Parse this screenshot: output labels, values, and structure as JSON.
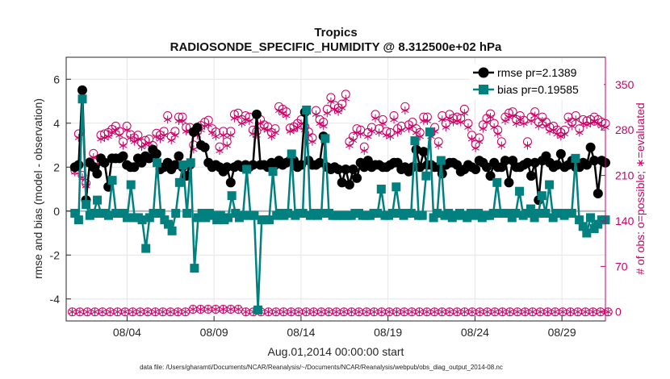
{
  "chart_data": {
    "type": "line",
    "title": "Tropics",
    "subtitle": "RADIOSONDE_SPECIFIC_HUMIDITY @ 8.312500e+02 hPa",
    "xlabel": "Aug.01,2014 00:00:00 start",
    "ylabel_left": "rmse and bias (model - observation)",
    "ylabel_right": "# of obs: o=possible; ∗=evaluated",
    "footnote": "data file: /Users/gharamti/Documents/NCAR/Reanalysis/~/Documents/NCAR/Reanalysis/webpub/obs_diag_output_2014-08.nc",
    "x_range_days": [
      0.5,
      31.5
    ],
    "ylim_left": [
      -5,
      7
    ],
    "ylim_right": [
      -14,
      392
    ],
    "yticks_left": [
      -4,
      -2,
      0,
      2,
      4,
      6
    ],
    "yticks_right": [
      0,
      70,
      140,
      210,
      280,
      350
    ],
    "xticks": [
      {
        "day": 4,
        "label": "08/04"
      },
      {
        "day": 9,
        "label": "08/09"
      },
      {
        "day": 14,
        "label": "08/14"
      },
      {
        "day": 19,
        "label": "08/19"
      },
      {
        "day": 24,
        "label": "08/24"
      },
      {
        "day": 29,
        "label": "08/29"
      }
    ],
    "legend_position": "top-right",
    "series": [
      {
        "name": "rmse",
        "legend": "rmse pr=2.1389",
        "color": "#000000",
        "marker": "circle",
        "values": [
          2.0,
          2.1,
          5.5,
          0.5,
          2.2,
          2.0,
          1.7,
          2.4,
          2.2,
          1.1,
          2.4,
          2.4,
          2.4,
          2.5,
          2.1,
          2.0,
          2.0,
          2.4,
          2.2,
          2.5,
          2.4,
          2.8,
          2.6,
          1.9,
          2.0,
          2.2,
          1.9,
          2.1,
          2.5,
          2.0,
          1.6,
          2.1,
          3.6,
          3.8,
          3.0,
          2.9,
          2.2,
          2.0,
          2.1,
          2.0,
          1.8,
          2.0,
          1.3,
          2.0,
          2.1,
          2.0,
          2.1,
          2.0,
          2.1,
          4.4,
          2.1,
          2.1,
          2.0,
          2.2,
          2.1,
          2.3,
          2.1,
          2.2,
          2.3,
          2.3,
          2.0,
          2.1,
          4.5,
          2.3,
          2.1,
          2.1,
          2.2,
          3.4,
          2.0,
          1.9,
          2.0,
          1.9,
          1.3,
          1.9,
          1.2,
          1.9,
          1.5,
          2.2,
          2.0,
          2.3,
          2.0,
          2.1,
          2.1,
          2.0,
          2.0,
          2.1,
          2.2,
          2.2,
          1.9,
          2.0,
          1.8,
          2.0,
          2.8,
          2.0,
          2.7,
          2.1,
          2.1,
          2.0,
          2.0,
          1.7,
          2.1,
          2.2,
          2.2,
          2.1,
          1.8,
          1.9,
          2.1,
          2.0,
          1.9,
          2.3,
          2.2,
          2.0,
          1.6,
          2.2,
          2.0,
          2.0,
          2.3,
          1.3,
          2.3,
          2.0,
          2.0,
          2.1,
          2.2,
          1.6,
          2.2,
          0.5,
          2.3,
          2.5,
          2.2,
          2.0,
          2.1,
          2.6,
          2.0,
          2.1,
          2.3,
          2.0,
          2.0,
          2.2,
          2.1,
          2.9,
          2.3,
          0.8,
          2.3,
          2.2
        ]
      },
      {
        "name": "bias",
        "legend": "bias pr=0.19585",
        "color": "#00807f",
        "marker": "square",
        "values": [
          -0.1,
          -0.4,
          5.1,
          0.3,
          -0.2,
          -0.1,
          0.5,
          -0.1,
          -0.1,
          -0.2,
          1.4,
          -0.1,
          -0.1,
          -0.1,
          -0.3,
          1.2,
          -0.3,
          -0.3,
          -0.4,
          -1.7,
          -0.3,
          -0.1,
          2.2,
          -0.1,
          -0.4,
          -0.6,
          -0.9,
          -0.1,
          1.3,
          2.1,
          -0.1,
          2.2,
          -2.6,
          -0.3,
          -0.1,
          -0.3,
          -0.1,
          -0.2,
          -0.4,
          -0.2,
          -0.4,
          -0.3,
          0.7,
          -0.1,
          -0.3,
          -0.2,
          1.9,
          -0.2,
          -0.2,
          -4.5,
          -0.4,
          -0.4,
          -0.4,
          1.8,
          -0.2,
          -0.1,
          -0.2,
          -0.1,
          2.6,
          -0.2,
          -0.1,
          -0.1,
          4.6,
          -0.2,
          -0.1,
          -0.2,
          -0.1,
          3.3,
          -0.1,
          -0.2,
          -0.2,
          -0.2,
          -0.2,
          -0.2,
          -0.2,
          -0.1,
          -0.1,
          -0.2,
          -0.2,
          -0.2,
          -0.1,
          -0.1,
          1.0,
          -0.2,
          -0.2,
          -0.1,
          1.1,
          -0.1,
          -0.2,
          -0.1,
          -0.1,
          3.2,
          -0.2,
          -0.2,
          1.6,
          3.6,
          -0.3,
          -0.1,
          2.3,
          -0.2,
          -0.1,
          -0.3,
          -0.2,
          -0.1,
          -0.2,
          -0.3,
          -0.1,
          -0.2,
          -0.1,
          -0.3,
          -0.2,
          -0.2,
          -0.1,
          1.3,
          -0.1,
          -0.1,
          -0.1,
          -0.3,
          -0.1,
          0.9,
          -0.2,
          -0.1,
          0.1,
          -0.3,
          -0.1,
          0.7,
          -0.1,
          1.2,
          -0.3,
          -0.1,
          -0.1,
          -0.2,
          -0.1,
          -0.1,
          2.4,
          -0.4,
          -0.7,
          -1.0,
          -0.3,
          -0.8,
          -0.6,
          -0.4,
          -0.4
        ]
      }
    ],
    "obs_counts": {
      "color": "#cc0066",
      "possible_daily": [
        218,
        274,
        210,
        198,
        231,
        244,
        232,
        272,
        274,
        276,
        281,
        286,
        278,
        262,
        286,
        273,
        268,
        272,
        260,
        264,
        266,
        256,
        275,
        272,
        278,
        302,
        270,
        278,
        300,
        300,
        284,
        284,
        257,
        278,
        287,
        292,
        295,
        282,
        277,
        254,
        278,
        262,
        278,
        304,
        306,
        296,
        302,
        300,
        280,
        278,
        296,
        288,
        285,
        276,
        282,
        316,
        312,
        308,
        283,
        285,
        290,
        296,
        285,
        277,
        268,
        310,
        296,
        292,
        312,
        330,
        318,
        314,
        320,
        335,
        262,
        270,
        282,
        280,
        254,
        276,
        284,
        304,
        282,
        296,
        278,
        276,
        302,
        282,
        286,
        316,
        288,
        292,
        282,
        276,
        300,
        300,
        276,
        284,
        262,
        302,
        290,
        304,
        298,
        300,
        298,
        312,
        290,
        272,
        258,
        268,
        288,
        298,
        305,
        290,
        280,
        262,
        300,
        306,
        308,
        296,
        302,
        295,
        262,
        300,
        308,
        292,
        300,
        292,
        284,
        286,
        280,
        276,
        280,
        300,
        292,
        302,
        282,
        296,
        294,
        296,
        300,
        296,
        292,
        290
      ],
      "evaluated_daily": [
        215,
        268,
        207,
        194,
        226,
        238,
        228,
        266,
        268,
        270,
        276,
        280,
        272,
        256,
        280,
        268,
        262,
        266,
        254,
        258,
        260,
        250,
        270,
        266,
        272,
        296,
        264,
        272,
        294,
        294,
        278,
        278,
        250,
        272,
        280,
        286,
        288,
        276,
        270,
        248,
        272,
        256,
        272,
        298,
        300,
        290,
        296,
        294,
        274,
        272,
        290,
        282,
        280,
        270,
        276,
        310,
        306,
        302,
        278,
        280,
        284,
        290,
        280,
        272,
        262,
        304,
        290,
        286,
        306,
        324,
        312,
        308,
        314,
        328,
        256,
        264,
        276,
        274,
        248,
        270,
        278,
        298,
        276,
        290,
        272,
        270,
        296,
        276,
        280,
        310,
        282,
        286,
        276,
        270,
        294,
        294,
        270,
        278,
        256,
        296,
        284,
        298,
        292,
        294,
        292,
        306,
        284,
        266,
        252,
        262,
        282,
        292,
        300,
        284,
        274,
        256,
        294,
        300,
        302,
        290,
        296,
        290,
        256,
        294,
        302,
        286,
        294,
        286,
        278,
        280,
        274,
        270,
        274,
        294,
        286,
        296,
        276,
        290,
        288,
        290,
        294,
        290,
        286,
        284
      ],
      "possible_low": 0,
      "evaluated_low": 0
    }
  }
}
